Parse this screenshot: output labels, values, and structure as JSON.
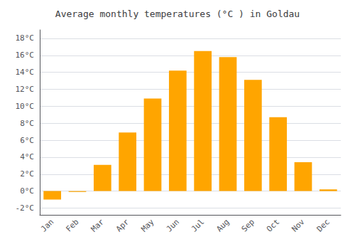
{
  "chart_data": {
    "type": "bar",
    "title": "Average monthly temperatures (°C ) in Goldau",
    "categories": [
      "Jan",
      "Feb",
      "Mar",
      "Apr",
      "May",
      "Jun",
      "Jul",
      "Aug",
      "Sep",
      "Oct",
      "Nov",
      "Dec"
    ],
    "values": [
      -1.0,
      -0.1,
      3.1,
      6.9,
      10.9,
      14.2,
      16.5,
      15.8,
      13.1,
      8.7,
      3.4,
      0.2
    ],
    "color": "#FFA500",
    "ylim": [
      -2.8,
      19.0
    ],
    "yticks": [
      {
        "value": -2,
        "label": "-2°C"
      },
      {
        "value": 0,
        "label": "0°C"
      },
      {
        "value": 2,
        "label": "2°C"
      },
      {
        "value": 4,
        "label": "4°C"
      },
      {
        "value": 6,
        "label": "6°C"
      },
      {
        "value": 8,
        "label": "8°C"
      },
      {
        "value": 10,
        "label": "10°C"
      },
      {
        "value": 12,
        "label": "12°C"
      },
      {
        "value": 14,
        "label": "14°C"
      },
      {
        "value": 16,
        "label": "16°C"
      },
      {
        "value": 18,
        "label": "18°C"
      }
    ],
    "grid": true
  }
}
